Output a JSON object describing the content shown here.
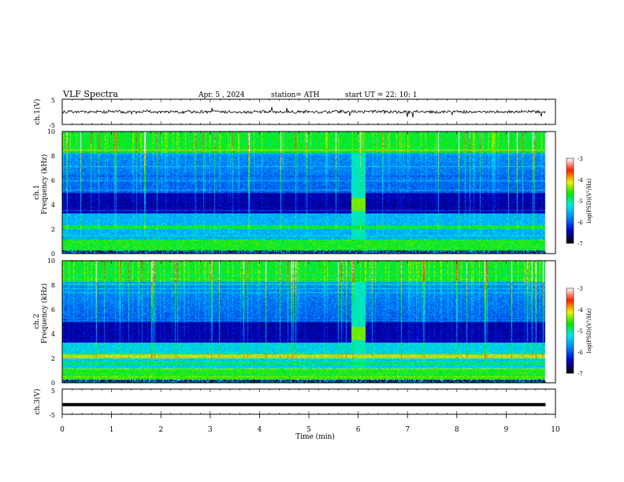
{
  "chart_data": {
    "type": "heatmap",
    "header": {
      "title": "VLF  Spectra",
      "date": "Apr. 5  , 2024",
      "station": "station= ATH",
      "start": "start  UT  =    22: 10: 1"
    },
    "xlabel": "Time  (min)",
    "xlim": [
      0,
      10
    ],
    "xticks": [
      "0",
      "1",
      "2",
      "3",
      "4",
      "5",
      "6",
      "7",
      "8",
      "9",
      "10"
    ],
    "panels": [
      {
        "kind": "waveform",
        "ylabel": "ch.1(V)",
        "ylim": [
          -5,
          5
        ],
        "yticks": [
          "5",
          "-5"
        ],
        "trace_amplitude": 0.6,
        "trace_noise": 0.5
      },
      {
        "kind": "spectrogram",
        "ylabel_1": "ch.1",
        "ylabel_2": "Frequency  (kHz)",
        "ylim": [
          0,
          10
        ],
        "yticks": [
          "0",
          "2",
          "4",
          "6",
          "8",
          "10"
        ],
        "data_end_min": 9.8,
        "event_window_min": [
          5.85,
          6.15
        ],
        "colorbar": {
          "label": "log(PSD)(V²/Hz)",
          "range": [
            -7,
            -3
          ],
          "ticks": [
            "-3",
            "-4",
            "-5",
            "-6",
            "-7"
          ]
        }
      },
      {
        "kind": "spectrogram",
        "ylabel_1": "ch.2",
        "ylabel_2": "Frequency  (kHz)",
        "ylim": [
          0,
          10
        ],
        "yticks": [
          "0",
          "2",
          "4",
          "6",
          "8",
          "10"
        ],
        "data_end_min": 9.8,
        "event_window_min": [
          5.85,
          6.15
        ],
        "colorbar": {
          "label": "log(PSD)(V²/Hz)",
          "range": [
            -7,
            -3
          ],
          "ticks": [
            "-3",
            "-4",
            "-5",
            "-6",
            "-7"
          ]
        }
      },
      {
        "kind": "waveform",
        "ylabel": "ch.3(V)",
        "ylim": [
          -5,
          5
        ],
        "yticks": [
          "5",
          "-5"
        ],
        "trace_level": -1.2
      }
    ]
  }
}
